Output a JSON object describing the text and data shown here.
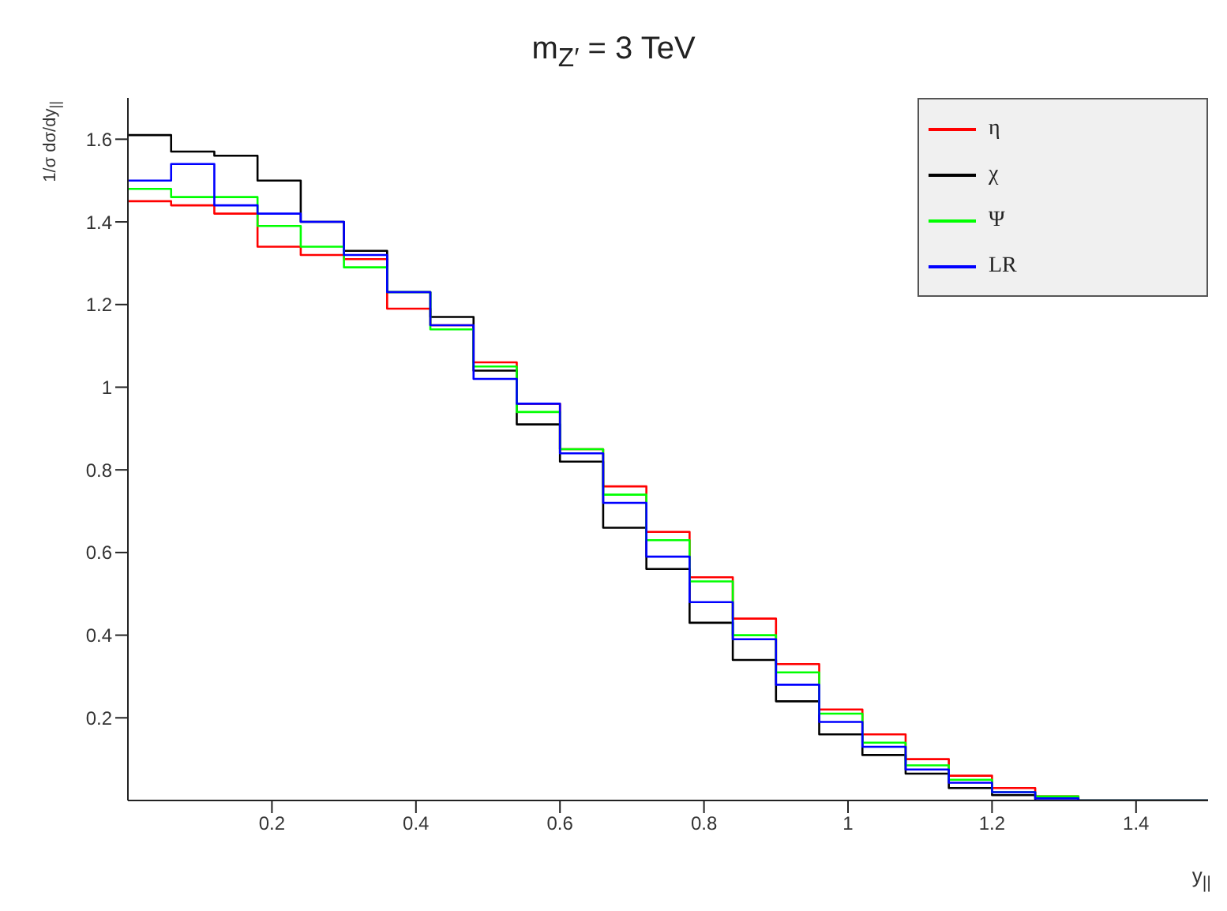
{
  "chart_data": {
    "type": "histogram",
    "title": "m$_{Z′}$ = 3 TeV",
    "xlabel": "y$_{||}$",
    "ylabel": "1/σ dσ/dy$_{||}$",
    "bins": [
      0,
      0.06,
      0.12,
      0.18,
      0.24,
      0.3,
      0.36,
      0.42,
      0.48,
      0.54,
      0.6,
      0.66,
      0.72,
      0.78,
      0.84,
      0.9,
      0.96,
      1.02,
      1.08,
      1.14,
      1.2,
      1.26,
      1.32,
      1.38,
      1.44,
      1.5
    ],
    "series": [
      {
        "name": "η",
        "color": "#ff0000",
        "values": [
          1.45,
          1.44,
          1.42,
          1.34,
          1.32,
          1.31,
          1.19,
          1.15,
          1.06,
          0.96,
          0.85,
          0.76,
          0.65,
          0.54,
          0.44,
          0.33,
          0.22,
          0.16,
          0.1,
          0.06,
          0.03,
          0.01,
          0,
          0,
          0
        ]
      },
      {
        "name": "χ",
        "color": "#000000",
        "values": [
          1.61,
          1.57,
          1.56,
          1.5,
          1.4,
          1.33,
          1.23,
          1.17,
          1.04,
          0.91,
          0.82,
          0.66,
          0.56,
          0.43,
          0.34,
          0.24,
          0.16,
          0.11,
          0.065,
          0.03,
          0.013,
          0,
          0,
          0,
          0
        ]
      },
      {
        "name": "Ψ",
        "color": "#00ff00",
        "values": [
          1.48,
          1.46,
          1.46,
          1.39,
          1.34,
          1.29,
          1.23,
          1.14,
          1.05,
          0.94,
          0.85,
          0.74,
          0.63,
          0.53,
          0.4,
          0.31,
          0.21,
          0.14,
          0.085,
          0.05,
          0.02,
          0.01,
          0,
          0,
          0
        ]
      },
      {
        "name": "LR",
        "color": "#0000ff",
        "values": [
          1.5,
          1.54,
          1.44,
          1.42,
          1.4,
          1.32,
          1.23,
          1.15,
          1.02,
          0.96,
          0.84,
          0.72,
          0.59,
          0.48,
          0.39,
          0.28,
          0.19,
          0.13,
          0.075,
          0.043,
          0.02,
          0.005,
          0,
          0,
          0
        ]
      }
    ],
    "xlim": [
      0,
      1.5
    ],
    "xticks": [
      0.2,
      0.4,
      0.6,
      0.8,
      1,
      1.2,
      1.4
    ],
    "ylim": [
      0,
      1.7
    ],
    "yticks": [
      0.2,
      0.4,
      0.6,
      0.8,
      1,
      1.2,
      1.4,
      1.6
    ],
    "legend": "top right",
    "grid": false
  }
}
